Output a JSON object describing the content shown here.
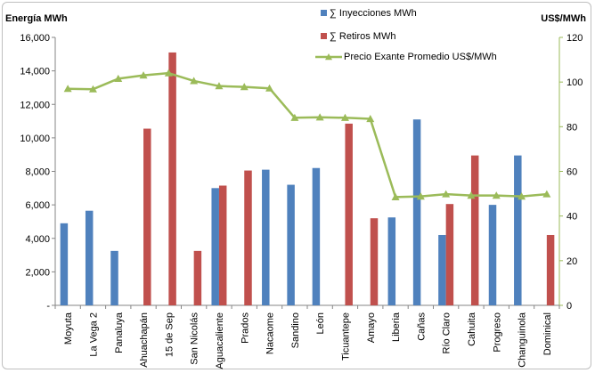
{
  "chart_data": {
    "type": "bar",
    "ylabel_left": "Energía MWh",
    "ylabel_right": "US$/MWh",
    "y_left_lim": [
      0,
      16000
    ],
    "y_left_ticks": [
      "-",
      "2,000",
      "4,000",
      "6,000",
      "8,000",
      "10,000",
      "12,000",
      "14,000",
      "16,000"
    ],
    "y_right_lim": [
      0,
      120
    ],
    "y_right_ticks": [
      "0",
      "20",
      "40",
      "60",
      "80",
      "100",
      "120"
    ],
    "categories": [
      "Moyuta",
      "La Vega 2",
      "Panaluya",
      "Ahuachapán",
      "15 de Sep",
      "San Nicolás",
      "Aguacaliente",
      "Prados",
      "Nacaome",
      "Sandino",
      "León",
      "Ticuantepe",
      "Amayo",
      "Liberia",
      "Cañas",
      "Río Claro",
      "Cahuita",
      "Progreso",
      "Changuinola",
      "Dominical"
    ],
    "series": [
      {
        "name": "∑ Inyecciones MWh",
        "kind": "bar",
        "axis": "left",
        "color": "#4f81bd",
        "values": [
          4900,
          5650,
          3250,
          0,
          0,
          0,
          7000,
          0,
          8100,
          7200,
          8200,
          0,
          0,
          5250,
          11100,
          4200,
          0,
          6000,
          8950,
          0
        ]
      },
      {
        "name": "∑ Retiros MWh",
        "kind": "bar",
        "axis": "left",
        "color": "#c0504d",
        "values": [
          0,
          0,
          0,
          10550,
          15100,
          3250,
          7150,
          8050,
          0,
          0,
          0,
          10850,
          5200,
          0,
          0,
          6050,
          8950,
          0,
          0,
          4200
        ]
      },
      {
        "name": "Precio Exante Promedio US$/MWh",
        "kind": "line",
        "axis": "right",
        "color": "#9bbb59",
        "values": [
          97,
          96.8,
          101.5,
          103,
          104,
          100.5,
          98.2,
          97.8,
          97.2,
          84,
          84.2,
          84,
          83.5,
          48.5,
          48.8,
          49.8,
          49.2,
          49.2,
          48.8,
          49.8
        ]
      }
    ],
    "legend_placement": "top-center",
    "grid": false
  }
}
